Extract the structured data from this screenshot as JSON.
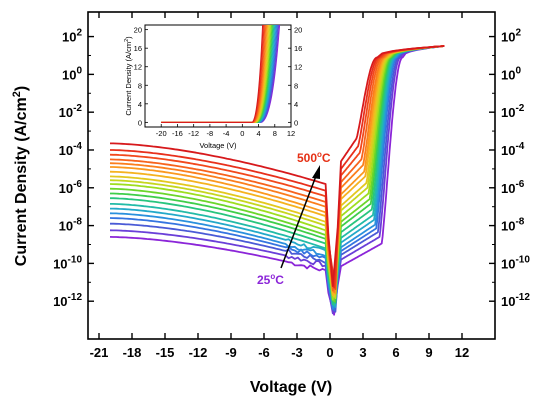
{
  "chart_data": [
    {
      "type": "line",
      "xlabel": "Voltage (V)",
      "ylabel": "Current Density (A/cm",
      "ylabel_sup": "2",
      "ylabel_close": ")",
      "xlim": [
        -22,
        15
      ],
      "ylim_log10": [
        -14,
        3.3
      ],
      "y_scale": "log",
      "x_ticks": [
        "-21",
        "-18",
        "-15",
        "-12",
        "-9",
        "-6",
        "-3",
        "0",
        "3",
        "6",
        "9",
        "12"
      ],
      "y_tick_bases": [
        "10",
        "10",
        "10",
        "10",
        "10",
        "10",
        "10",
        "10"
      ],
      "y_tick_exps": [
        "2",
        "0",
        "-2",
        "-4",
        "-6",
        "-8",
        "-10",
        "-12"
      ],
      "temperature_labels": [
        {
          "base": "500",
          "sup": "o",
          "unit": "C",
          "color": "#e53015"
        },
        {
          "base": "25",
          "sup": "o",
          "unit": "C",
          "color": "#8b25d8"
        }
      ],
      "series_count": 20,
      "curve_shape": {
        "reverse_start_log10": [
          -3.65,
          -4.0,
          -4.25,
          -4.5,
          -4.7,
          -4.9,
          -5.15,
          -5.4,
          -5.6,
          -5.8,
          -6.05,
          -6.3,
          -6.55,
          -6.85,
          -7.1,
          -7.35,
          -7.6,
          -7.9,
          -8.25,
          -8.6
        ],
        "reverse_end_log10": [
          -5.8,
          -6.15,
          -6.45,
          -6.75,
          -7.0,
          -7.3,
          -7.5,
          -7.8,
          -8.0,
          -8.25,
          -8.5,
          -8.7,
          -8.95,
          -9.2,
          -9.4,
          -9.6,
          -9.75,
          -9.9,
          -10.1,
          -10.4
        ],
        "turn_on_voltage": [
          2.4,
          2.55,
          2.7,
          2.85,
          3.0,
          3.1,
          3.2,
          3.3,
          3.4,
          3.5,
          3.6,
          3.7,
          3.8,
          3.9,
          4.0,
          4.1,
          4.2,
          4.35,
          4.5,
          4.7
        ],
        "saturation_log10": 1.5,
        "end_voltage": 10.4
      },
      "colors": [
        "#d7191c",
        "#e8301c",
        "#f2481c",
        "#f7631c",
        "#fb7e1d",
        "#fb981f",
        "#f5b21f",
        "#e3c81f",
        "#c6d61f",
        "#9ede1f",
        "#6bd62b",
        "#3fce4a",
        "#28c57e",
        "#22bba8",
        "#23a9c9",
        "#2a90dd",
        "#3574e0",
        "#4a5ad6",
        "#6a3fd8",
        "#8b25d8"
      ]
    },
    {
      "type": "line",
      "role": "inset",
      "xlabel": "Voltage (V)",
      "ylabel": "Current Density (A/cm",
      "ylabel_sup": "2",
      "ylabel_close": ")",
      "xlim": [
        -24,
        12
      ],
      "ylim": [
        -1,
        21
      ],
      "x_ticks": [
        "-20",
        "-16",
        "-12",
        "-8",
        "-4",
        "0",
        "4",
        "8",
        "12"
      ],
      "y_ticks": [
        "0",
        "4",
        "8",
        "12",
        "16",
        "20"
      ],
      "y_ticks_right": [
        "0",
        "4",
        "8",
        "12",
        "16",
        "20"
      ],
      "series_count": 20,
      "rise_start_voltage_range": [
        2.3,
        4.6
      ],
      "rise_end_voltage_range": [
        5.0,
        9.2
      ]
    }
  ]
}
